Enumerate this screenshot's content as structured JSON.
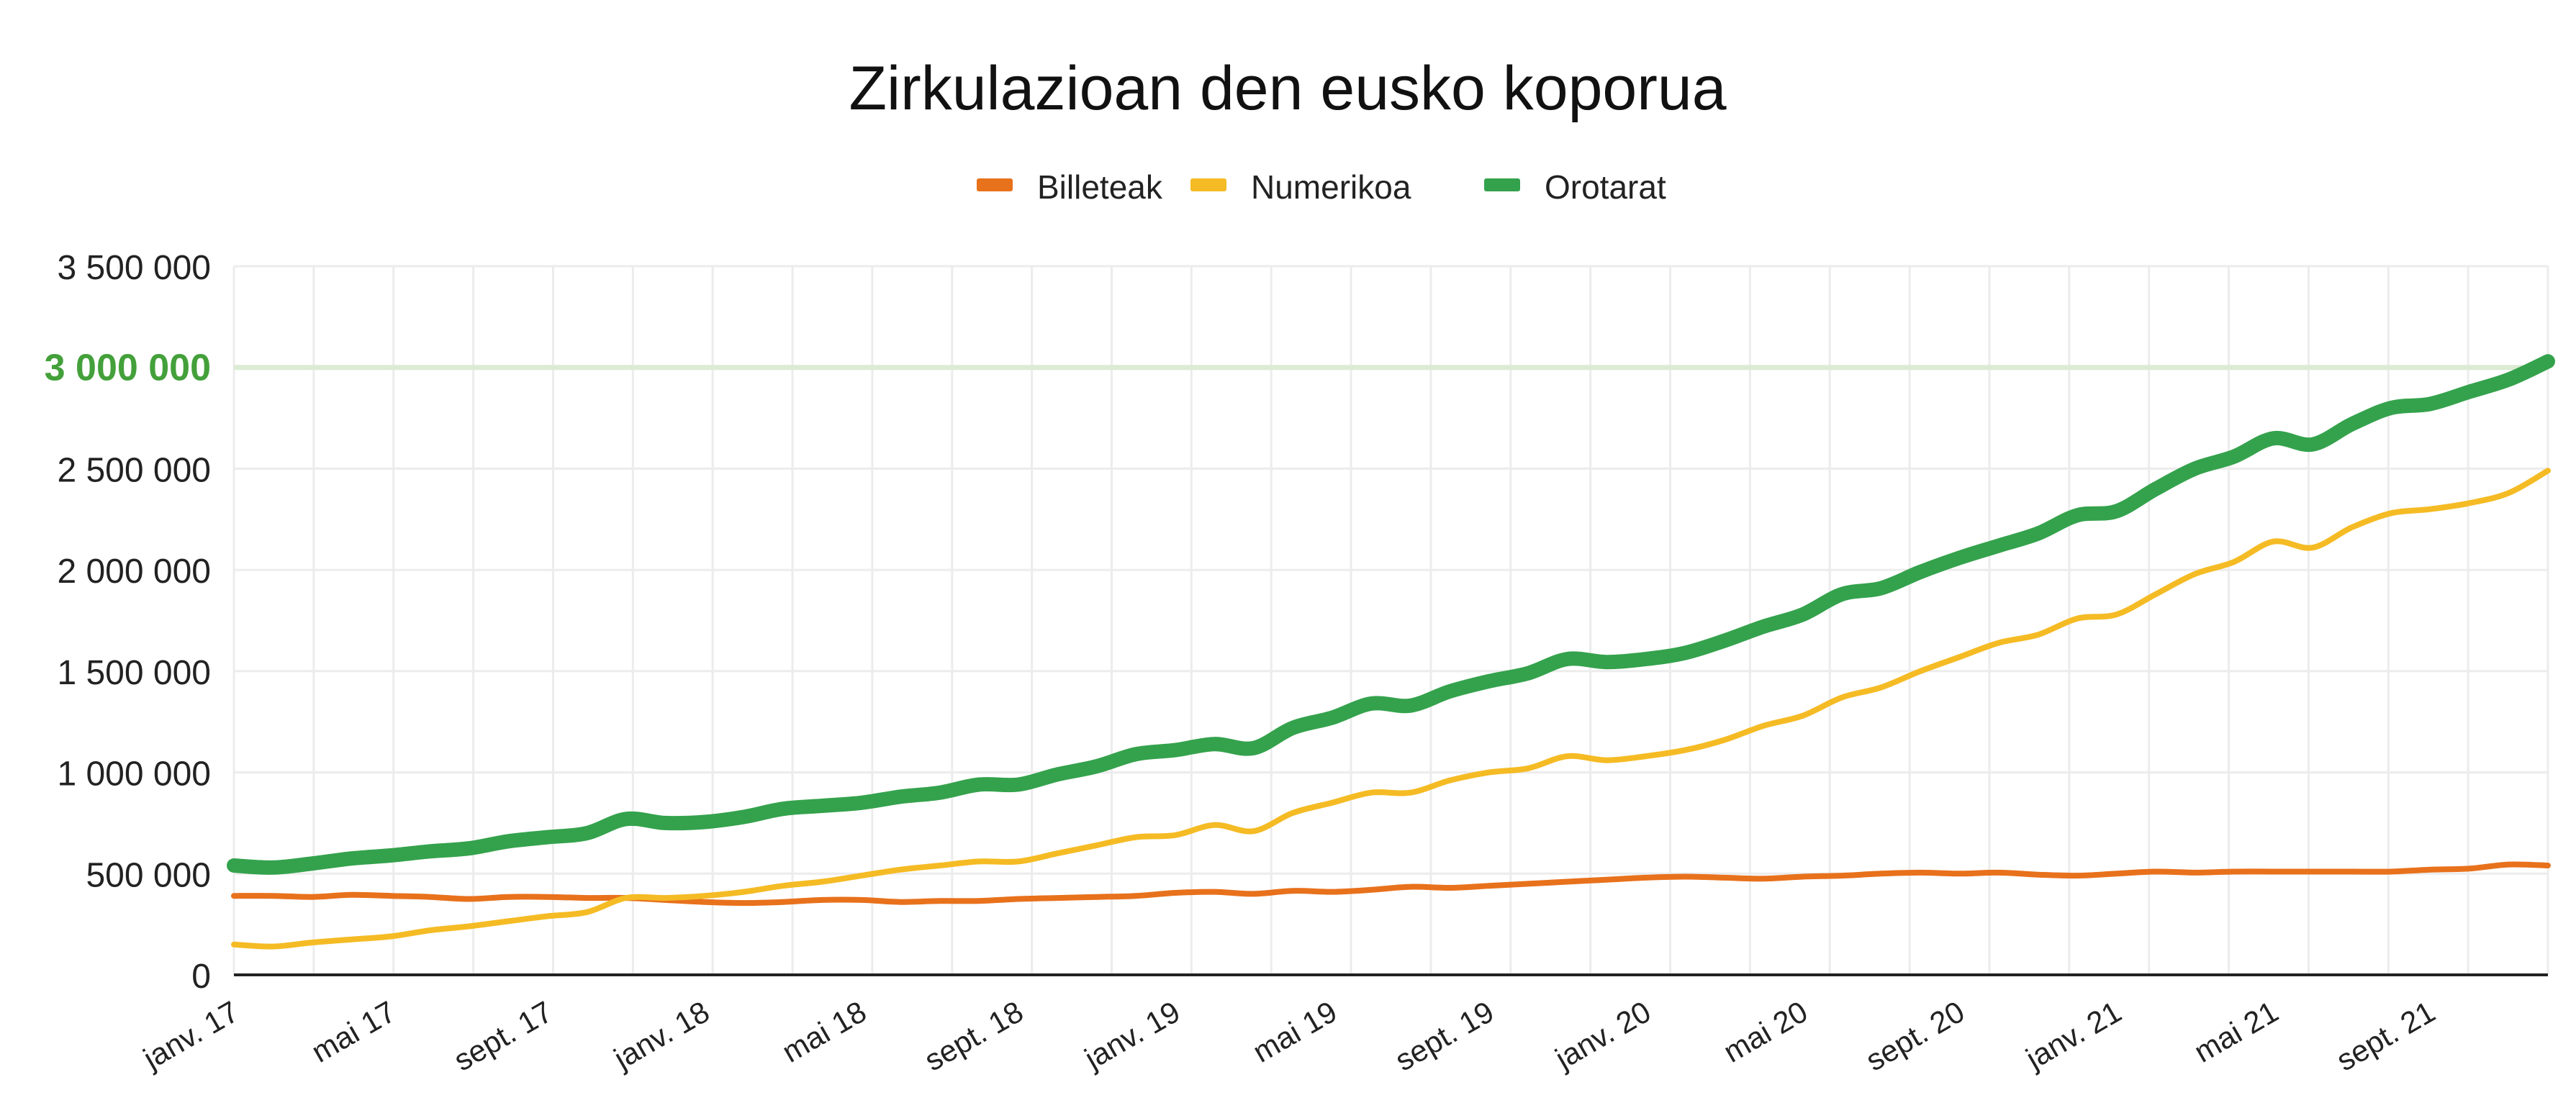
{
  "chart_data": {
    "type": "line",
    "title": "Zirkulazioan den eusko koporua",
    "xlabel": "",
    "ylabel": "",
    "ylim": [
      0,
      3500000
    ],
    "y_ticks": [
      {
        "value": 0,
        "label": "0"
      },
      {
        "value": 500000,
        "label": "500 000"
      },
      {
        "value": 1000000,
        "label": "1 000 000"
      },
      {
        "value": 1500000,
        "label": "1 500 000"
      },
      {
        "value": 2000000,
        "label": "2 000 000"
      },
      {
        "value": 2500000,
        "label": "2 500 000"
      },
      {
        "value": 3000000,
        "label": "3 000 000",
        "highlight": true
      },
      {
        "value": 3500000,
        "label": "3 500 000"
      }
    ],
    "highlight_line": {
      "value": 3000000,
      "color": "#dcebd3",
      "label_color": "#43a03a"
    },
    "x_tick_labels": [
      {
        "date": "2017-01",
        "label": "janv. 17"
      },
      {
        "date": "2017-05",
        "label": "mai 17"
      },
      {
        "date": "2017-09",
        "label": "sept. 17"
      },
      {
        "date": "2018-01",
        "label": "janv. 18"
      },
      {
        "date": "2018-05",
        "label": "mai 18"
      },
      {
        "date": "2018-09",
        "label": "sept. 18"
      },
      {
        "date": "2019-01",
        "label": "janv. 19"
      },
      {
        "date": "2019-05",
        "label": "mai 19"
      },
      {
        "date": "2019-09",
        "label": "sept. 19"
      },
      {
        "date": "2020-01",
        "label": "janv. 20"
      },
      {
        "date": "2020-05",
        "label": "mai 20"
      },
      {
        "date": "2020-09",
        "label": "sept. 20"
      },
      {
        "date": "2021-01",
        "label": "janv. 21"
      },
      {
        "date": "2021-05",
        "label": "mai 21"
      },
      {
        "date": "2021-09",
        "label": "sept. 21"
      }
    ],
    "x": [
      "2017-01",
      "2017-02",
      "2017-03",
      "2017-04",
      "2017-05",
      "2017-06",
      "2017-07",
      "2017-08",
      "2017-09",
      "2017-10",
      "2017-11",
      "2017-12",
      "2018-01",
      "2018-02",
      "2018-03",
      "2018-04",
      "2018-05",
      "2018-06",
      "2018-07",
      "2018-08",
      "2018-09",
      "2018-10",
      "2018-11",
      "2018-12",
      "2019-01",
      "2019-02",
      "2019-03",
      "2019-04",
      "2019-05",
      "2019-06",
      "2019-07",
      "2019-08",
      "2019-09",
      "2019-10",
      "2019-11",
      "2019-12",
      "2020-01",
      "2020-02",
      "2020-03",
      "2020-04",
      "2020-05",
      "2020-06",
      "2020-07",
      "2020-08",
      "2020-09",
      "2020-10",
      "2020-11",
      "2020-12",
      "2021-01",
      "2021-02",
      "2021-03",
      "2021-04",
      "2021-05",
      "2021-06",
      "2021-07",
      "2021-08",
      "2021-09",
      "2021-10",
      "2021-11",
      "2021-12"
    ],
    "series": [
      {
        "name": "Billeteak",
        "color": "#e8711c",
        "values": [
          390000,
          390000,
          385000,
          395000,
          390000,
          385000,
          375000,
          385000,
          385000,
          380000,
          380000,
          370000,
          360000,
          355000,
          360000,
          370000,
          370000,
          360000,
          365000,
          365000,
          375000,
          380000,
          385000,
          390000,
          405000,
          410000,
          400000,
          415000,
          410000,
          420000,
          435000,
          430000,
          440000,
          450000,
          460000,
          470000,
          480000,
          485000,
          480000,
          475000,
          485000,
          490000,
          500000,
          505000,
          500000,
          505000,
          495000,
          490000,
          500000,
          510000,
          505000,
          510000,
          510000,
          510000,
          510000,
          510000,
          520000,
          525000,
          545000,
          540000
        ]
      },
      {
        "name": "Numerikoa",
        "color": "#f5bb24",
        "values": [
          150000,
          140000,
          160000,
          175000,
          190000,
          220000,
          240000,
          265000,
          290000,
          310000,
          380000,
          380000,
          390000,
          410000,
          440000,
          460000,
          490000,
          520000,
          540000,
          560000,
          560000,
          600000,
          640000,
          680000,
          690000,
          740000,
          710000,
          800000,
          850000,
          900000,
          900000,
          960000,
          1000000,
          1020000,
          1080000,
          1060000,
          1080000,
          1110000,
          1160000,
          1230000,
          1280000,
          1370000,
          1420000,
          1500000,
          1570000,
          1640000,
          1680000,
          1760000,
          1780000,
          1880000,
          1980000,
          2040000,
          2140000,
          2110000,
          2210000,
          2280000,
          2300000,
          2330000,
          2380000,
          2490000
        ]
      },
      {
        "name": "Orotarat",
        "color": "#34a24c",
        "values": [
          540000,
          530000,
          550000,
          575000,
          590000,
          610000,
          625000,
          660000,
          680000,
          700000,
          770000,
          750000,
          755000,
          780000,
          820000,
          835000,
          850000,
          880000,
          900000,
          940000,
          940000,
          990000,
          1030000,
          1090000,
          1110000,
          1140000,
          1120000,
          1220000,
          1270000,
          1340000,
          1330000,
          1400000,
          1450000,
          1490000,
          1560000,
          1545000,
          1560000,
          1590000,
          1650000,
          1720000,
          1780000,
          1880000,
          1910000,
          1990000,
          2060000,
          2120000,
          2180000,
          2270000,
          2290000,
          2400000,
          2500000,
          2560000,
          2650000,
          2620000,
          2720000,
          2800000,
          2820000,
          2880000,
          2940000,
          3030000
        ]
      }
    ],
    "legend_position": "top-center",
    "grid": true
  }
}
